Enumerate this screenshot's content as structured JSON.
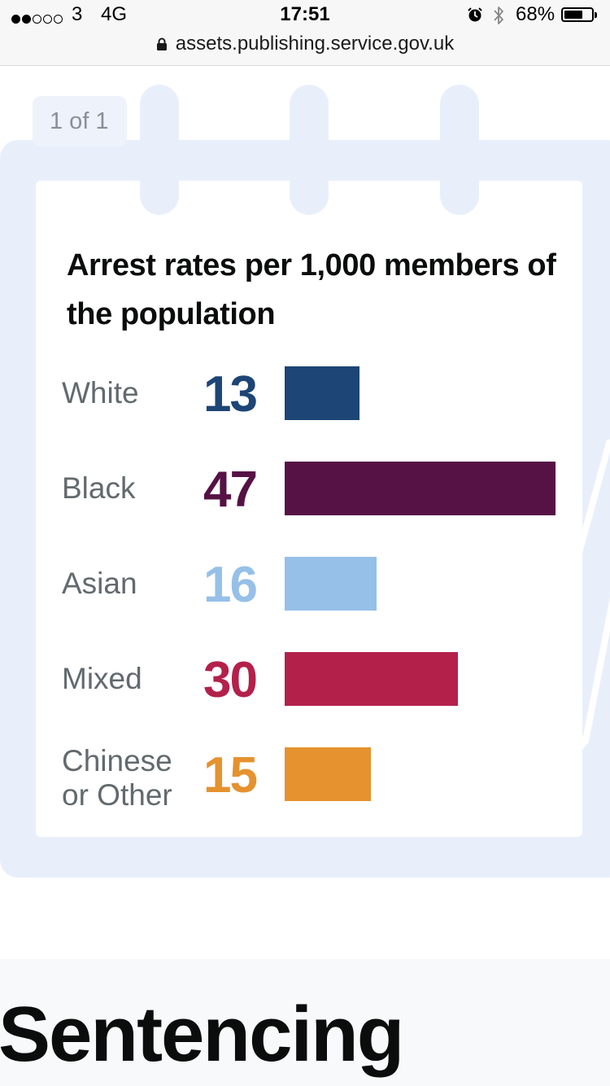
{
  "status_bar": {
    "carrier": "3",
    "network": "4G",
    "time": "17:51",
    "battery_percent": "68%",
    "battery_level": 0.68,
    "signal_bars_filled": 2,
    "signal_bars_total": 5
  },
  "browser": {
    "url": "assets.publishing.service.gov.uk"
  },
  "viewer": {
    "page_indicator": "1 of 1"
  },
  "chart_data": {
    "type": "bar",
    "orientation": "horizontal",
    "title": "Arrest rates per 1,000 members of the population",
    "categories": [
      "White",
      "Black",
      "Asian",
      "Mixed",
      "Chinese\nor Other"
    ],
    "values": [
      13,
      47,
      16,
      30,
      15
    ],
    "value_labels": [
      "13",
      "47",
      "16",
      "30",
      "15"
    ],
    "colors": [
      "#1d4576",
      "#561145",
      "#96c0e8",
      "#b3214b",
      "#e5922f"
    ],
    "xlim": [
      0,
      47
    ],
    "xlabel": "",
    "ylabel": "",
    "grid": false,
    "legend": "none"
  },
  "section": {
    "title": "Sentencing"
  },
  "colors": {
    "pad_background": "#e9effa",
    "heading": "#0b0c0c",
    "category_text": "#626a6e"
  }
}
